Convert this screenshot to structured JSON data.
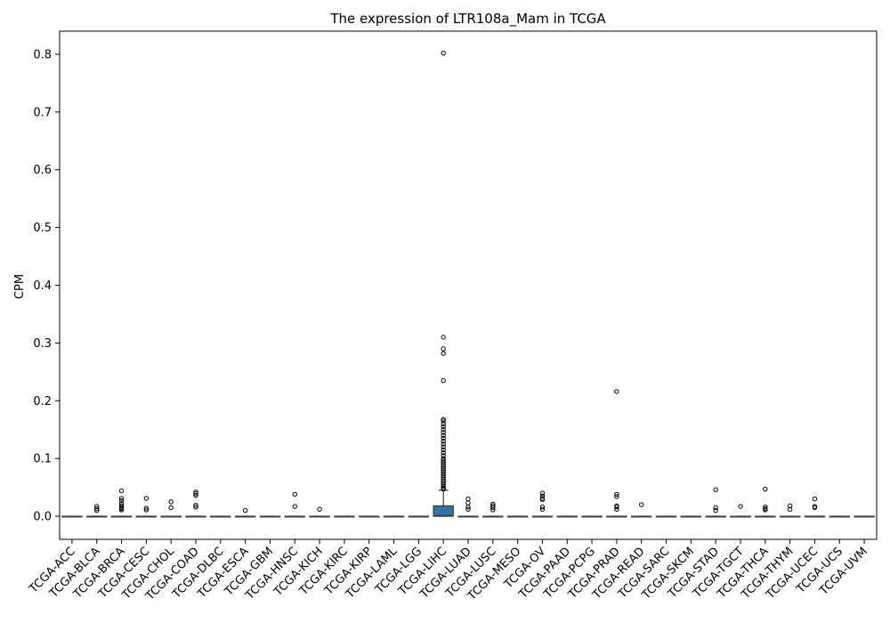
{
  "chart_data": {
    "type": "box",
    "title": "The expression of LTR108a_Mam in TCGA",
    "xlabel": "",
    "ylabel": "CPM",
    "ylim": [
      -0.04,
      0.84
    ],
    "yticks": [
      "0.0",
      "0.1",
      "0.2",
      "0.3",
      "0.4",
      "0.5",
      "0.6",
      "0.7",
      "0.8"
    ],
    "grid": false,
    "box_color": "#3274a1",
    "categories": [
      "TCGA-ACC",
      "TCGA-BLCA",
      "TCGA-BRCA",
      "TCGA-CESC",
      "TCGA-CHOL",
      "TCGA-COAD",
      "TCGA-DLBC",
      "TCGA-ESCA",
      "TCGA-GBM",
      "TCGA-HNSC",
      "TCGA-KICH",
      "TCGA-KIRC",
      "TCGA-KIRP",
      "TCGA-LAML",
      "TCGA-LGG",
      "TCGA-LIHC",
      "TCGA-LUAD",
      "TCGA-LUSC",
      "TCGA-MESO",
      "TCGA-OV",
      "TCGA-PAAD",
      "TCGA-PCPG",
      "TCGA-PRAD",
      "TCGA-READ",
      "TCGA-SARC",
      "TCGA-SKCM",
      "TCGA-STAD",
      "TCGA-TGCT",
      "TCGA-THCA",
      "TCGA-THYM",
      "TCGA-UCEC",
      "TCGA-UCS",
      "TCGA-UVM"
    ],
    "boxes": [
      {
        "q1": 0,
        "median": 0,
        "q3": 0,
        "whisker_low": 0,
        "whisker_high": 0,
        "outliers": []
      },
      {
        "q1": 0,
        "median": 0,
        "q3": 0,
        "whisker_low": 0,
        "whisker_high": 0,
        "outliers": [
          0.017,
          0.013,
          0.01
        ]
      },
      {
        "q1": 0,
        "median": 0,
        "q3": 0,
        "whisker_low": 0,
        "whisker_high": 0,
        "outliers": [
          0.044,
          0.031,
          0.027,
          0.022,
          0.018,
          0.015,
          0.013,
          0.011
        ]
      },
      {
        "q1": 0,
        "median": 0,
        "q3": 0,
        "whisker_low": 0,
        "whisker_high": 0,
        "outliers": [
          0.031,
          0.014,
          0.011
        ]
      },
      {
        "q1": 0,
        "median": 0,
        "q3": 0,
        "whisker_low": 0,
        "whisker_high": 0,
        "outliers": [
          0.025,
          0.015
        ]
      },
      {
        "q1": 0,
        "median": 0,
        "q3": 0,
        "whisker_low": 0,
        "whisker_high": 0,
        "outliers": [
          0.042,
          0.039,
          0.036,
          0.019,
          0.016
        ]
      },
      {
        "q1": 0,
        "median": 0,
        "q3": 0,
        "whisker_low": 0,
        "whisker_high": 0,
        "outliers": []
      },
      {
        "q1": 0,
        "median": 0,
        "q3": 0,
        "whisker_low": 0,
        "whisker_high": 0,
        "outliers": [
          0.01
        ]
      },
      {
        "q1": 0,
        "median": 0,
        "q3": 0,
        "whisker_low": 0,
        "whisker_high": 0,
        "outliers": []
      },
      {
        "q1": 0,
        "median": 0,
        "q3": 0,
        "whisker_low": 0,
        "whisker_high": 0,
        "outliers": [
          0.038,
          0.017
        ]
      },
      {
        "q1": 0,
        "median": 0,
        "q3": 0,
        "whisker_low": 0,
        "whisker_high": 0,
        "outliers": [
          0.012
        ]
      },
      {
        "q1": 0,
        "median": 0,
        "q3": 0,
        "whisker_low": 0,
        "whisker_high": 0,
        "outliers": []
      },
      {
        "q1": 0,
        "median": 0,
        "q3": 0,
        "whisker_low": 0,
        "whisker_high": 0,
        "outliers": []
      },
      {
        "q1": 0,
        "median": 0,
        "q3": 0,
        "whisker_low": 0,
        "whisker_high": 0,
        "outliers": []
      },
      {
        "q1": 0,
        "median": 0,
        "q3": 0,
        "whisker_low": 0,
        "whisker_high": 0,
        "outliers": []
      },
      {
        "q1": 0,
        "median": 0.001,
        "q3": 0.018,
        "whisker_low": 0,
        "whisker_high": 0.045,
        "outliers": [
          0.802,
          0.31,
          0.29,
          0.282,
          0.235,
          0.168,
          0.165,
          0.16,
          0.155,
          0.15,
          0.145,
          0.14,
          0.135,
          0.13,
          0.125,
          0.12,
          0.115,
          0.11,
          0.105,
          0.1,
          0.097,
          0.094,
          0.091,
          0.088,
          0.085,
          0.082,
          0.079,
          0.076,
          0.073,
          0.07,
          0.067,
          0.064,
          0.061,
          0.058,
          0.055,
          0.052,
          0.049,
          0.047
        ]
      },
      {
        "q1": 0,
        "median": 0,
        "q3": 0,
        "whisker_low": 0,
        "whisker_high": 0,
        "outliers": [
          0.03,
          0.023,
          0.016,
          0.012
        ]
      },
      {
        "q1": 0,
        "median": 0,
        "q3": 0,
        "whisker_low": 0,
        "whisker_high": 0,
        "outliers": [
          0.021,
          0.018,
          0.015,
          0.011
        ]
      },
      {
        "q1": 0,
        "median": 0,
        "q3": 0,
        "whisker_low": 0,
        "whisker_high": 0,
        "outliers": []
      },
      {
        "q1": 0,
        "median": 0,
        "q3": 0,
        "whisker_low": 0,
        "whisker_high": 0,
        "outliers": [
          0.04,
          0.035,
          0.031,
          0.029,
          0.016,
          0.012
        ]
      },
      {
        "q1": 0,
        "median": 0,
        "q3": 0,
        "whisker_low": 0,
        "whisker_high": 0,
        "outliers": []
      },
      {
        "q1": 0,
        "median": 0,
        "q3": 0,
        "whisker_low": 0,
        "whisker_high": 0,
        "outliers": []
      },
      {
        "q1": 0,
        "median": 0,
        "q3": 0,
        "whisker_low": 0,
        "whisker_high": 0,
        "outliers": [
          0.216,
          0.038,
          0.034,
          0.018,
          0.016,
          0.012
        ]
      },
      {
        "q1": 0,
        "median": 0,
        "q3": 0,
        "whisker_low": 0,
        "whisker_high": 0,
        "outliers": [
          0.02
        ]
      },
      {
        "q1": 0,
        "median": 0,
        "q3": 0,
        "whisker_low": 0,
        "whisker_high": 0,
        "outliers": []
      },
      {
        "q1": 0,
        "median": 0,
        "q3": 0,
        "whisker_low": 0,
        "whisker_high": 0,
        "outliers": []
      },
      {
        "q1": 0,
        "median": 0,
        "q3": 0,
        "whisker_low": 0,
        "whisker_high": 0,
        "outliers": [
          0.046,
          0.015,
          0.01
        ]
      },
      {
        "q1": 0,
        "median": 0,
        "q3": 0,
        "whisker_low": 0,
        "whisker_high": 0,
        "outliers": [
          0.017
        ]
      },
      {
        "q1": 0,
        "median": 0,
        "q3": 0,
        "whisker_low": 0,
        "whisker_high": 0,
        "outliers": [
          0.047,
          0.016,
          0.013,
          0.011
        ]
      },
      {
        "q1": 0,
        "median": 0,
        "q3": 0,
        "whisker_low": 0,
        "whisker_high": 0,
        "outliers": [
          0.018,
          0.012
        ]
      },
      {
        "q1": 0,
        "median": 0,
        "q3": 0,
        "whisker_low": 0,
        "whisker_high": 0,
        "outliers": [
          0.03,
          0.017,
          0.015
        ]
      },
      {
        "q1": 0,
        "median": 0,
        "q3": 0,
        "whisker_low": 0,
        "whisker_high": 0,
        "outliers": []
      },
      {
        "q1": 0,
        "median": 0,
        "q3": 0,
        "whisker_low": 0,
        "whisker_high": 0,
        "outliers": []
      }
    ]
  }
}
